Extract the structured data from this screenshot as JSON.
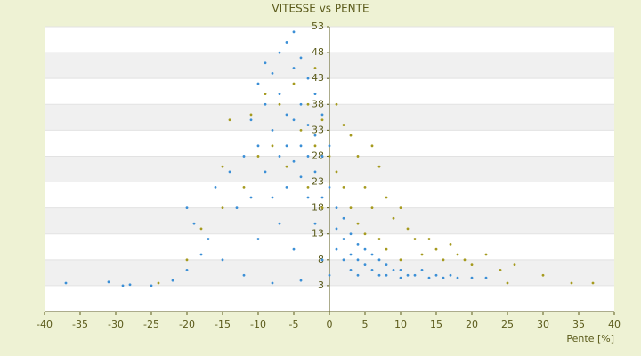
{
  "chart_data": {
    "type": "scatter",
    "title": "VITESSE vs PENTE",
    "x_label": "Pente [%]",
    "xlim": [
      -40,
      40
    ],
    "xticks": [
      -40,
      -35,
      -30,
      -25,
      -20,
      -15,
      -10,
      -5,
      0,
      5,
      10,
      15,
      20,
      25,
      30,
      35,
      40
    ],
    "ylim": [
      -2,
      53
    ],
    "yticks": [
      53,
      48,
      43,
      38,
      33,
      28,
      23,
      18,
      13,
      8,
      3
    ],
    "grid": true,
    "series": [
      {
        "color": "#3b8fd6",
        "x": [
          -37,
          -31,
          -29,
          -28,
          -25,
          -22,
          -20,
          -20,
          -19,
          -18,
          -17,
          -16,
          -15,
          -14,
          -13,
          -12,
          -12,
          -11,
          -11,
          -10,
          -10,
          -10,
          -9,
          -9,
          -9,
          -8,
          -8,
          -8,
          -8,
          -7,
          -7,
          -7,
          -7,
          -6,
          -6,
          -6,
          -6,
          -5,
          -5,
          -5,
          -5,
          -5,
          -4,
          -4,
          -4,
          -4,
          -4,
          -3,
          -3,
          -3,
          -3,
          -2,
          -2,
          -2,
          -2,
          -1,
          -1,
          -1,
          -1,
          0,
          0,
          0,
          1,
          1,
          1,
          2,
          2,
          2,
          3,
          3,
          3,
          4,
          4,
          4,
          5,
          5,
          6,
          6,
          7,
          7,
          8,
          8,
          9,
          10,
          10,
          11,
          12,
          13,
          14,
          15,
          16,
          17,
          18,
          20,
          22
        ],
        "values": [
          3.5,
          3.7,
          3,
          3.2,
          3,
          4,
          6,
          18,
          15,
          9,
          12,
          22,
          8,
          25,
          18,
          28,
          5,
          35,
          20,
          42,
          30,
          12,
          46,
          38,
          25,
          44,
          33,
          20,
          3.5,
          48,
          40,
          28,
          15,
          50,
          36,
          30,
          22,
          52,
          45,
          35,
          27,
          10,
          47,
          38,
          30,
          24,
          4,
          43,
          34,
          28,
          20,
          40,
          32,
          25,
          15,
          36,
          28,
          20,
          8,
          30,
          22,
          5,
          18,
          14,
          10,
          16,
          12,
          8,
          13,
          9,
          6,
          11,
          8,
          5,
          10,
          7,
          9,
          6,
          8,
          5,
          7,
          5,
          6,
          6,
          4.5,
          5,
          5,
          6,
          4.5,
          5,
          4.5,
          5,
          4.5,
          4.5,
          4.5
        ]
      },
      {
        "color": "#a59a1e",
        "x": [
          -24,
          -20,
          -18,
          -15,
          -15,
          -14,
          -12,
          -11,
          -10,
          -9,
          -8,
          -7,
          -6,
          -5,
          -4,
          -3,
          -3,
          -2,
          -2,
          -1,
          -1,
          0,
          1,
          1,
          2,
          2,
          3,
          3,
          4,
          4,
          5,
          5,
          6,
          6,
          7,
          7,
          8,
          8,
          9,
          10,
          10,
          11,
          12,
          13,
          14,
          15,
          16,
          17,
          18,
          19,
          20,
          22,
          24,
          25,
          26,
          30,
          34,
          37
        ],
        "values": [
          3.5,
          8,
          14,
          26,
          18,
          35,
          22,
          36,
          28,
          40,
          30,
          38,
          26,
          42,
          33,
          38,
          22,
          45,
          30,
          35,
          18,
          28,
          38,
          25,
          34,
          22,
          32,
          18,
          28,
          15,
          22,
          13,
          30,
          18,
          26,
          12,
          20,
          10,
          16,
          18,
          8,
          14,
          12,
          9,
          12,
          10,
          8,
          11,
          9,
          8,
          7,
          9,
          6,
          3.5,
          7,
          5,
          3.5,
          3.5
        ]
      }
    ]
  }
}
